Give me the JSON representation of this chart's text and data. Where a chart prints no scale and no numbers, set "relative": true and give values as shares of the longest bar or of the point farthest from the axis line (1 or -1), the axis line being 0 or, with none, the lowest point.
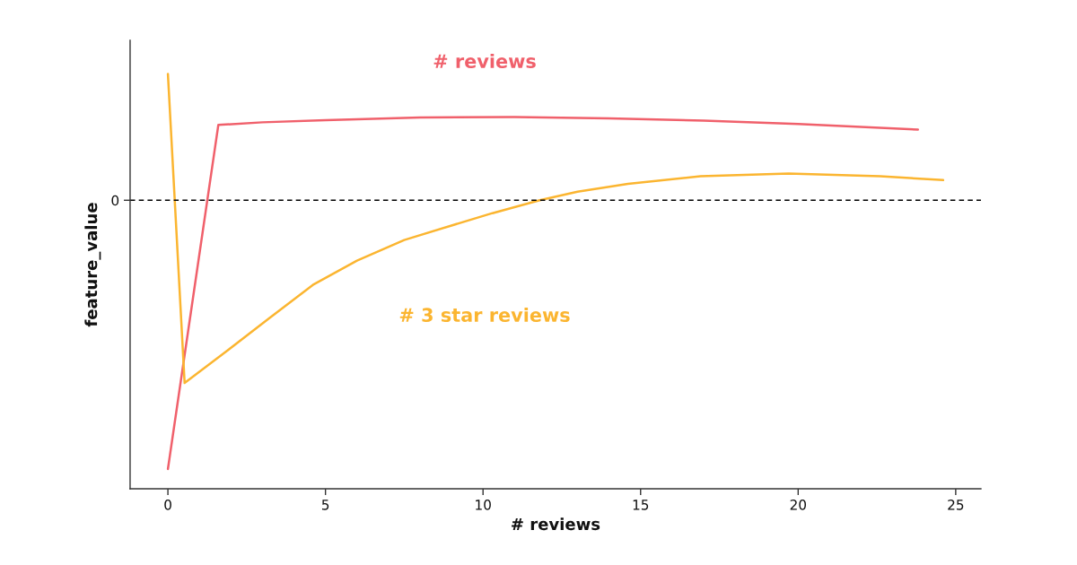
{
  "chart_data": {
    "type": "line",
    "relative": true,
    "xlabel": "# reviews",
    "ylabel": "feature_value",
    "xlim": [
      -1.2,
      25.8
    ],
    "xticks": [
      0,
      5,
      10,
      15,
      20,
      25
    ],
    "ref_lines": [
      {
        "axis": "y",
        "value": 0,
        "label": "0",
        "line_style": "dashed",
        "color": "#000000"
      }
    ],
    "series": [
      {
        "name": "# reviews",
        "color": "#f0606b",
        "x": [
          0,
          1.6,
          3,
          5,
          8,
          11,
          14,
          17,
          20,
          23.8
        ],
        "values": [
          -1,
          0.28,
          0.29,
          0.298,
          0.308,
          0.31,
          0.305,
          0.296,
          0.284,
          0.263
        ]
      },
      {
        "name": "# 3 star reviews",
        "color": "#fbb530",
        "x": [
          0,
          0.53,
          1.77,
          3.2,
          4.6,
          6,
          7.5,
          9,
          10.3,
          11.8,
          13,
          14.6,
          16.9,
          19.7,
          22.6,
          24.6
        ],
        "values": [
          0.47,
          -0.68,
          -0.57,
          -0.44,
          -0.315,
          -0.225,
          -0.148,
          -0.094,
          -0.048,
          0,
          0.032,
          0.061,
          0.089,
          0.099,
          0.089,
          0.075
        ]
      }
    ]
  }
}
